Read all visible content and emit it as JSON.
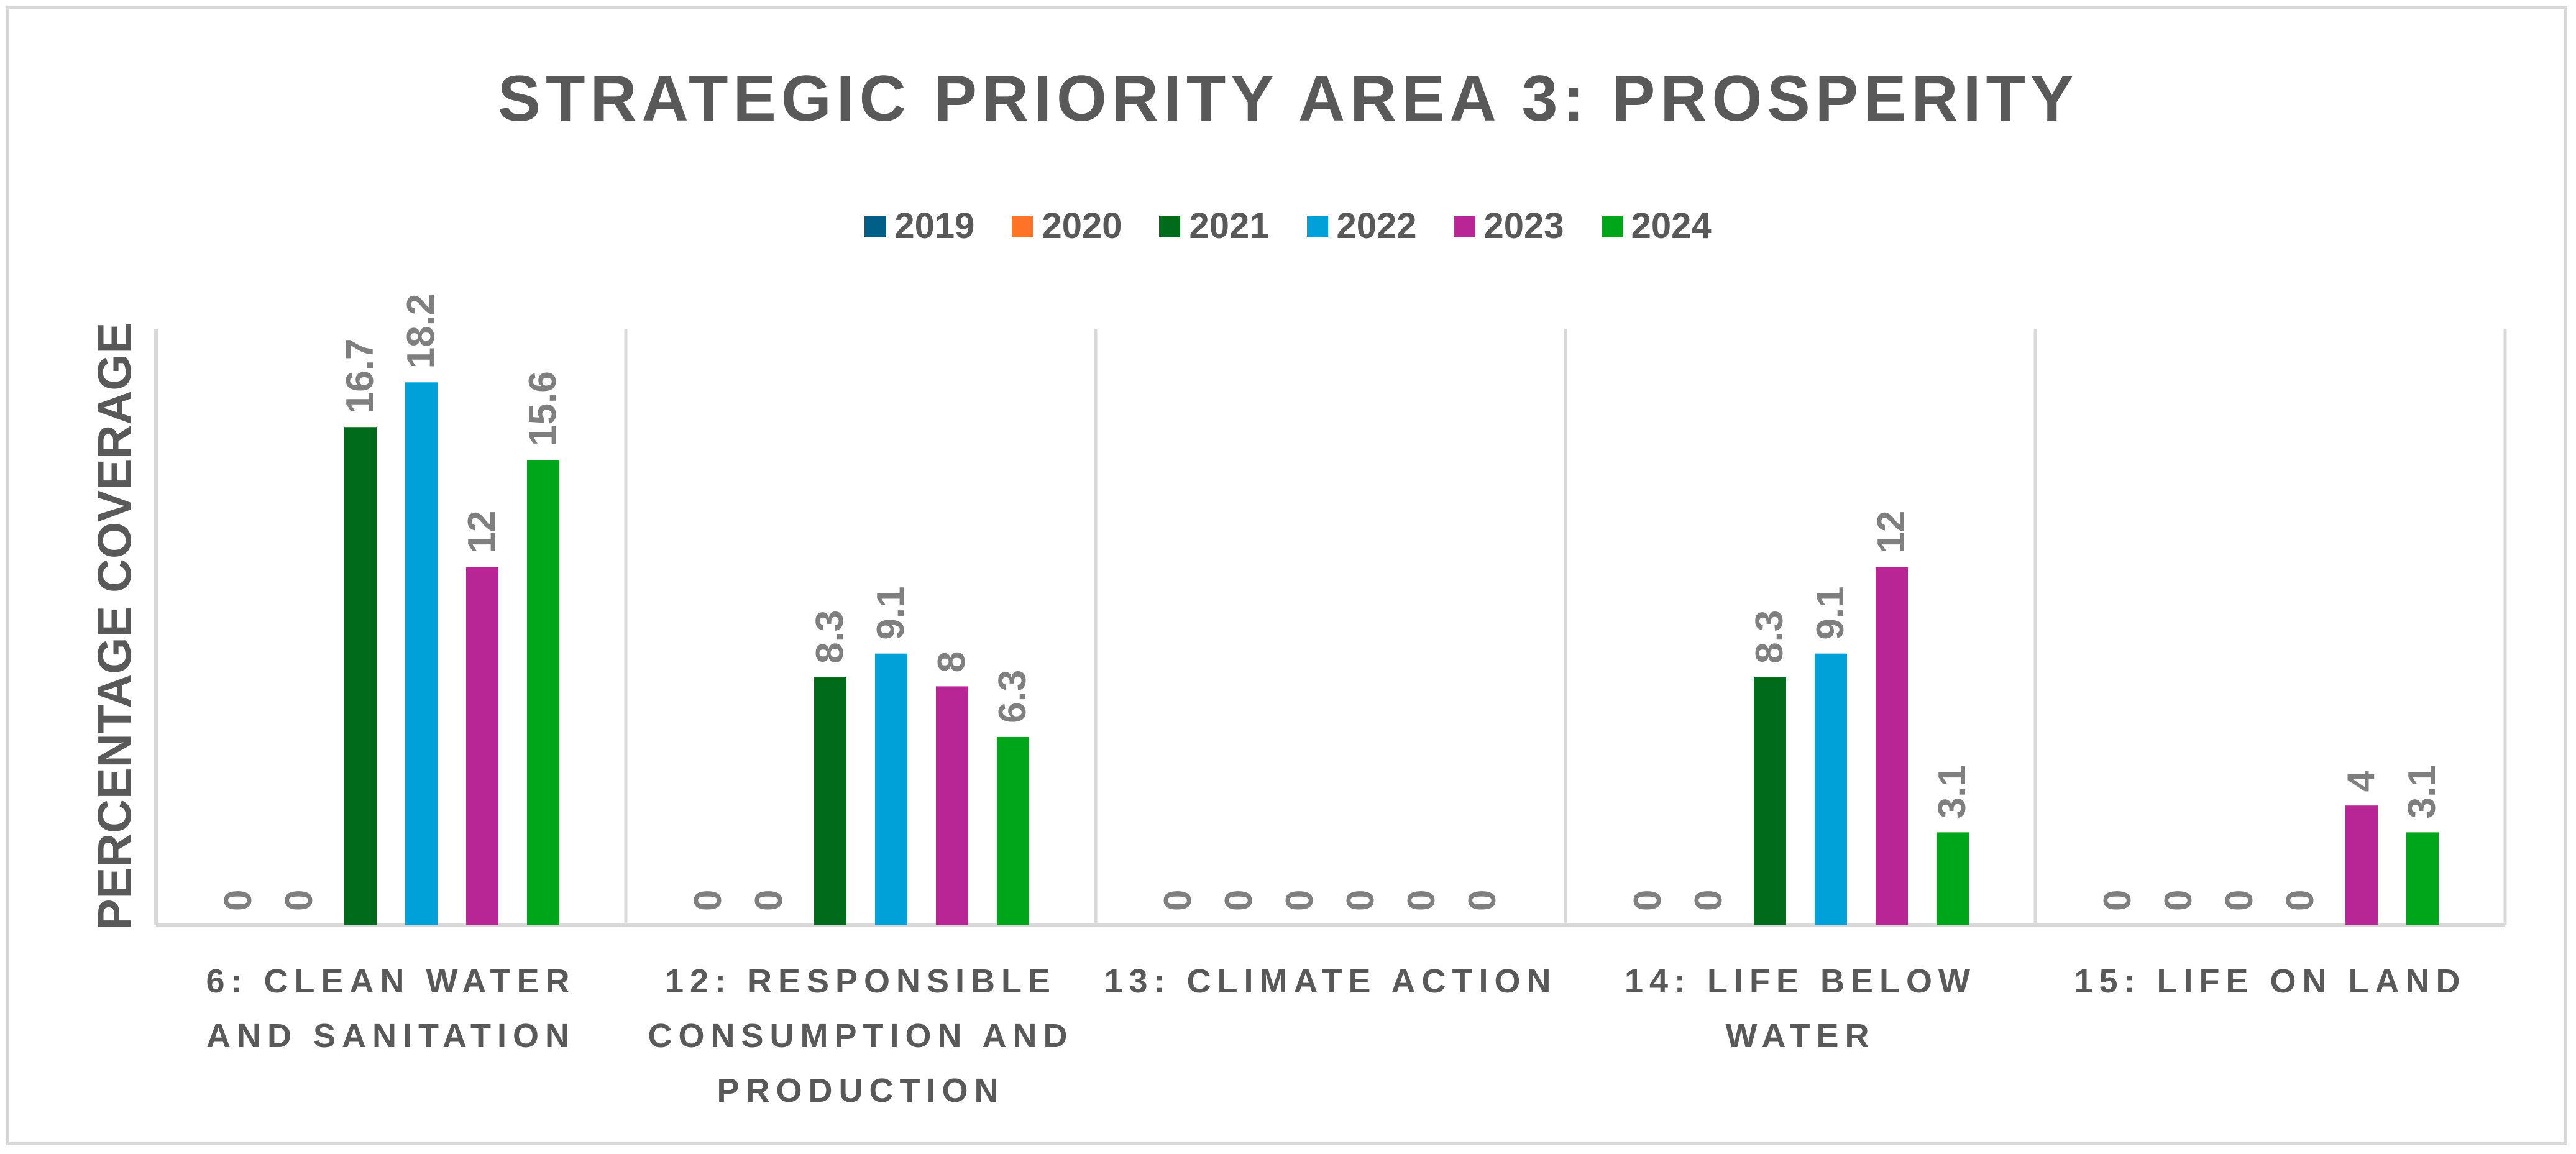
{
  "chart_data": {
    "type": "bar",
    "title": "STRATEGIC PRIORITY AREA 3: PROSPERITY",
    "xlabel": "",
    "ylabel": "PERCENTAGE COVERAGE",
    "ylim": [
      0,
      20
    ],
    "grid": false,
    "legend_position": "top",
    "categories": [
      "6: CLEAN WATER AND SANITATION",
      "12: RESPONSIBLE CONSUMPTION AND PRODUCTION",
      "13: CLIMATE ACTION",
      "14: LIFE BELOW WATER",
      "15: LIFE ON LAND"
    ],
    "series": [
      {
        "name": "2019",
        "color": "#005f86",
        "values": [
          0,
          0,
          0,
          0,
          0
        ]
      },
      {
        "name": "2020",
        "color": "#ff7327",
        "values": [
          0,
          0,
          0,
          0,
          0
        ]
      },
      {
        "name": "2021",
        "color": "#006b1a",
        "values": [
          16.7,
          8.3,
          0,
          8.3,
          0
        ]
      },
      {
        "name": "2022",
        "color": "#00a0d8",
        "values": [
          18.2,
          9.1,
          0,
          9.1,
          0
        ]
      },
      {
        "name": "2023",
        "color": "#b82594",
        "values": [
          12,
          8,
          0,
          12,
          4
        ]
      },
      {
        "name": "2024",
        "color": "#00a61a",
        "values": [
          15.6,
          6.3,
          0,
          3.1,
          3.1
        ]
      }
    ]
  }
}
